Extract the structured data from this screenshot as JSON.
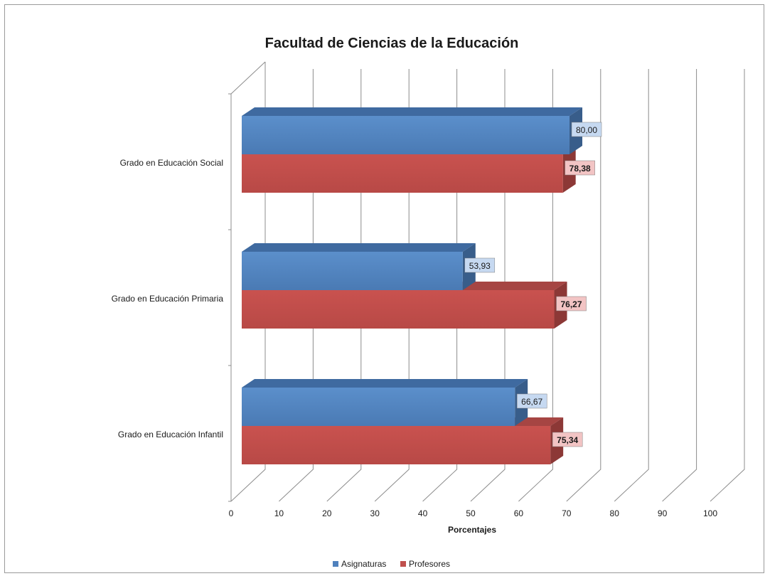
{
  "chart_data": {
    "type": "bar",
    "orientation": "horizontal",
    "style": "3d",
    "title": "Facultad de Ciencias de la Educación",
    "xlabel": "Porcentajes",
    "ylabel": "",
    "xlim": [
      0,
      100
    ],
    "x_ticks": [
      "0",
      "10",
      "20",
      "30",
      "40",
      "50",
      "60",
      "70",
      "80",
      "90",
      "100"
    ],
    "grid": true,
    "legend_position": "bottom",
    "categories": [
      "Grado en Educación Social",
      "Grado en Educación Primaria",
      "Grado en Educación Infantil"
    ],
    "series": [
      {
        "name": "Asignaturas",
        "color": "#4f81bd",
        "values": [
          80.0,
          53.93,
          66.67
        ],
        "labels": [
          "80,00",
          "53,93",
          "66,67"
        ]
      },
      {
        "name": "Profesores",
        "color": "#c0504d",
        "values": [
          78.38,
          76.27,
          75.34
        ],
        "labels": [
          "78,38",
          "76,27",
          "75,34"
        ]
      }
    ]
  }
}
